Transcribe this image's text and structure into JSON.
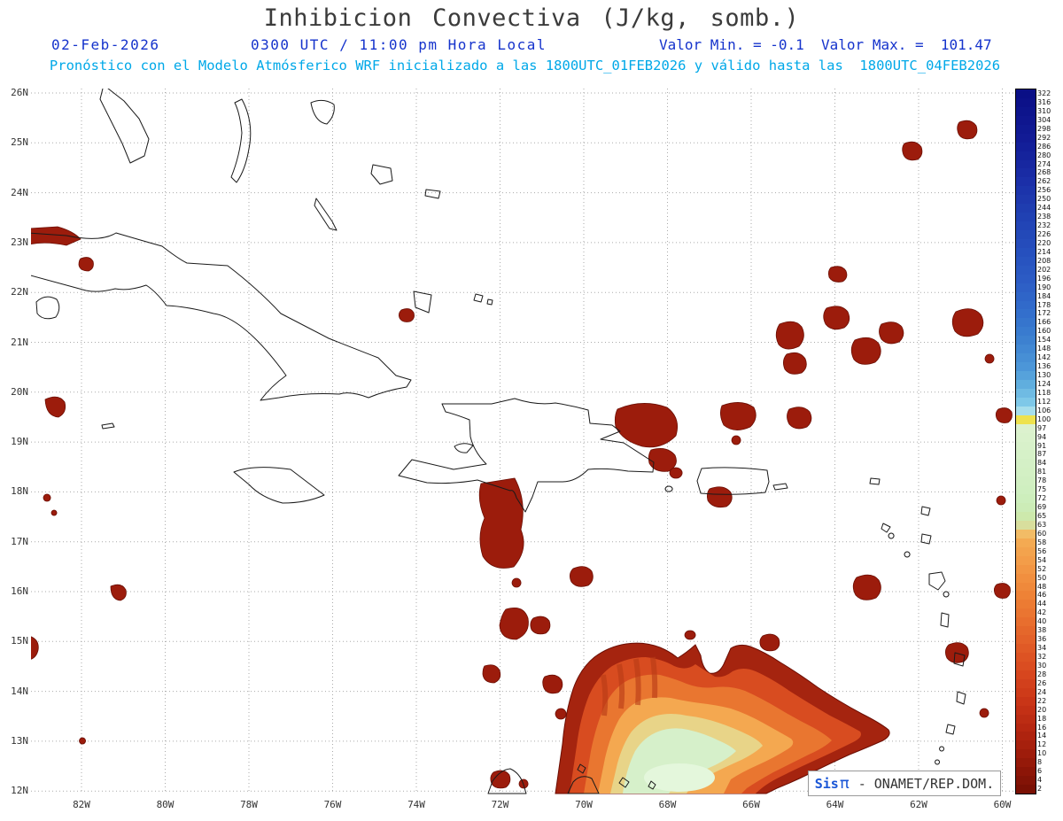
{
  "title": "Inhibicion Convectiva (J/kg, somb.)",
  "header": {
    "date": "02-Feb-2026",
    "time": "0300 UTC / 11:00 pm Hora Local",
    "minmax": "Valor Min. = -0.1  Valor Max. =  101.47",
    "forecast": "Pronóstico con el Modelo Atmósferico WRF inicializado a las 1800UTC_01FEB2026 y válido hasta las  1800UTC_04FEB2026"
  },
  "axes": {
    "lat_labels": [
      "26N",
      "25N",
      "24N",
      "23N",
      "22N",
      "21N",
      "20N",
      "19N",
      "18N",
      "17N",
      "16N",
      "15N",
      "14N",
      "13N",
      "12N"
    ],
    "lon_labels": [
      "82W",
      "80W",
      "78W",
      "76W",
      "74W",
      "72W",
      "70W",
      "68W",
      "66W",
      "64W",
      "62W",
      "60W"
    ]
  },
  "colorbar": {
    "values": [
      322,
      316,
      310,
      304,
      298,
      292,
      286,
      280,
      274,
      268,
      262,
      256,
      250,
      244,
      238,
      232,
      226,
      220,
      214,
      208,
      202,
      196,
      190,
      184,
      178,
      172,
      166,
      160,
      154,
      148,
      142,
      136,
      130,
      124,
      118,
      112,
      106,
      100,
      97,
      94,
      91,
      87,
      84,
      81,
      78,
      75,
      72,
      69,
      65,
      63,
      60,
      58,
      56,
      54,
      52,
      50,
      48,
      46,
      44,
      42,
      40,
      38,
      36,
      34,
      32,
      30,
      28,
      26,
      24,
      22,
      20,
      18,
      16,
      14,
      12,
      10,
      8,
      6,
      4,
      2
    ],
    "stops": [
      [
        2,
        "#7A1004"
      ],
      [
        6,
        "#8C1507"
      ],
      [
        10,
        "#9E1C0B"
      ],
      [
        16,
        "#B62711"
      ],
      [
        22,
        "#C93517"
      ],
      [
        28,
        "#D7461E"
      ],
      [
        34,
        "#E05A26"
      ],
      [
        40,
        "#E86E2E"
      ],
      [
        46,
        "#EE8236"
      ],
      [
        52,
        "#F29644"
      ],
      [
        58,
        "#F4AA52"
      ],
      [
        60,
        "#F2BC66"
      ],
      [
        62,
        "#E2D492"
      ],
      [
        64,
        "#CEE8A8"
      ],
      [
        68,
        "#CBECB6"
      ],
      [
        75,
        "#CFEFC0"
      ],
      [
        97,
        "#DCF2CE"
      ],
      [
        100,
        "#EEE24E"
      ],
      [
        103,
        "#C0E8EE"
      ],
      [
        106,
        "#A6DEEC"
      ],
      [
        112,
        "#7EC8E8"
      ],
      [
        124,
        "#60AEDE"
      ],
      [
        136,
        "#4C96D8"
      ],
      [
        155,
        "#3C80D0"
      ],
      [
        172,
        "#336FCC"
      ],
      [
        195,
        "#2C5CC4"
      ],
      [
        214,
        "#2650BE"
      ],
      [
        240,
        "#2040B2"
      ],
      [
        262,
        "#1B2FA8"
      ],
      [
        290,
        "#121C96"
      ],
      [
        322,
        "#0A0F86"
      ]
    ]
  },
  "branding": {
    "prefix": "Sis",
    "symbol": "π",
    "suffix": " - ONAMET/REP.DOM."
  },
  "colors": {
    "title-gray": "#3b3b3b",
    "header-blue": "#1533cc",
    "header-cyan": "#00a8e8",
    "brand-blue": "#1a56d6"
  }
}
